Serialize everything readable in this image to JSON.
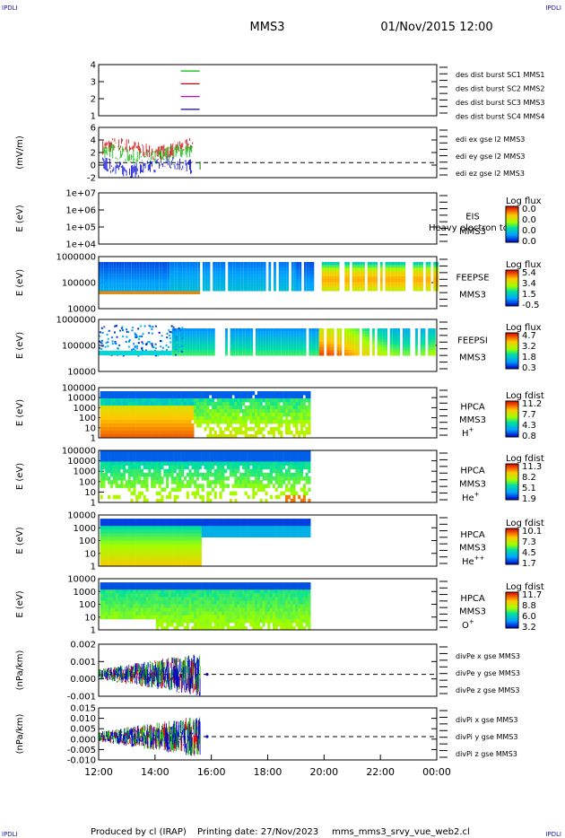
{
  "header": {
    "corner_tl": "IPDLI",
    "corner_tr": "IPDLI",
    "corner_bl": "IPDLI",
    "corner_br": "IPDLI",
    "mission": "MMS3",
    "datetime": "01/Nov/2015 12:00"
  },
  "footer": {
    "produced_by": "Produced by cl (IRAP)",
    "printing_date": "Printing date: 27/Nov/2023",
    "script_name": "mms_mms3_srvy_vue_web2.cl"
  },
  "colors": {
    "blue": "#0000cc",
    "red": "#cc0000",
    "green": "#00bb00",
    "magenta": "#cc00cc"
  },
  "chart_data": [
    {
      "type": "line",
      "id": "burst",
      "ylabel": "",
      "ylim": [
        0.5,
        4.5
      ],
      "yticks": [
        "4",
        "3",
        "2",
        "1"
      ],
      "series": [
        {
          "name": "des dist burst SC1 MMS1",
          "color": "#0000cc",
          "y": 1,
          "x_start": "14:55",
          "x_end": "15:35"
        },
        {
          "name": "des dist burst SC2 MMS2",
          "color": "#cc00cc",
          "y": 2,
          "x_start": "14:55",
          "x_end": "15:35"
        },
        {
          "name": "des dist burst SC3 MMS3",
          "color": "#cc0000",
          "y": 3,
          "x_start": "14:55",
          "x_end": "15:35"
        },
        {
          "name": "des dist burst SC4 MMS4",
          "color": "#00bb00",
          "y": 4,
          "x_start": "14:55",
          "x_end": "15:35"
        }
      ]
    },
    {
      "type": "line",
      "id": "edi",
      "ylabel": "(mV/m)",
      "ylim": [
        -3,
        7
      ],
      "yticks": [
        "6",
        "4",
        "2",
        "0",
        "-2"
      ],
      "series": [
        {
          "name": "edi ex gse l2 MMS3",
          "color": "#cc0000"
        },
        {
          "name": "edi ey gse l2 MMS3",
          "color": "#00bb00"
        },
        {
          "name": "edi ez gse l2 MMS3",
          "color": "#0000cc"
        }
      ]
    },
    {
      "type": "heatmap",
      "id": "eis",
      "ylabel": "E (eV)",
      "yticks": [
        "1e+07",
        "1e+06",
        "1e+05",
        "1e+04"
      ],
      "labels": [
        "EIS",
        "MMS3"
      ],
      "overlay_label": "Heavy electron to",
      "colorbar_title": "Log flux",
      "colorbar_ticks": [
        "0.0",
        "0.0",
        "0.0",
        "0.0"
      ]
    },
    {
      "type": "heatmap",
      "id": "feepse",
      "ylabel": "E (eV)",
      "yticks": [
        "1000000",
        "100000",
        "10000"
      ],
      "labels": [
        "FEEPSE",
        "MMS3"
      ],
      "colorbar_title": "Log flux",
      "colorbar_ticks": [
        "5.4",
        "3.4",
        "1.5",
        "-0.5"
      ]
    },
    {
      "type": "heatmap",
      "id": "feepsi",
      "ylabel": "E (eV)",
      "yticks": [
        "1000000",
        "100000",
        "10000"
      ],
      "labels": [
        "FEEPSI",
        "MMS3"
      ],
      "colorbar_title": "Log flux",
      "colorbar_ticks": [
        "4.7",
        "3.2",
        "1.8",
        "0.3"
      ]
    },
    {
      "type": "heatmap",
      "id": "hpca_h",
      "ylabel": "E (eV)",
      "yticks": [
        "100000",
        "10000",
        "1000",
        "100",
        "10",
        "1"
      ],
      "labels": [
        "HPCA",
        "MMS3"
      ],
      "species": "H",
      "charge": "+",
      "colorbar_title": "Log fdist",
      "colorbar_ticks": [
        "11.2",
        "7.7",
        "4.3",
        "0.8"
      ]
    },
    {
      "type": "heatmap",
      "id": "hpca_he",
      "ylabel": "E (eV)",
      "yticks": [
        "100000",
        "10000",
        "1000",
        "100",
        "10",
        "1"
      ],
      "labels": [
        "HPCA",
        "MMS3"
      ],
      "species": "He",
      "charge": "+",
      "colorbar_title": "Log fdist",
      "colorbar_ticks": [
        "11.3",
        "8.2",
        "5.1",
        "1.9"
      ]
    },
    {
      "type": "heatmap",
      "id": "hpca_hepp",
      "ylabel": "E (eV)",
      "yticks": [
        "10000",
        "1000",
        "100",
        "10",
        "1"
      ],
      "labels": [
        "HPCA",
        "MMS3"
      ],
      "species": "He",
      "charge": "++",
      "colorbar_title": "Log fdist",
      "colorbar_ticks": [
        "10.1",
        "7.3",
        "4.5",
        "1.7"
      ]
    },
    {
      "type": "heatmap",
      "id": "hpca_o",
      "ylabel": "E (eV)",
      "yticks": [
        "10000",
        "1000",
        "100",
        "10",
        "1"
      ],
      "labels": [
        "HPCA",
        "MMS3"
      ],
      "species": "O",
      "charge": "+",
      "colorbar_title": "Log fdist",
      "colorbar_ticks": [
        "11.7",
        "8.8",
        "6.0",
        "3.2"
      ]
    },
    {
      "type": "line",
      "id": "divpe",
      "ylabel": "(nPa/km)",
      "ylim": [
        -0.0016,
        0.0022
      ],
      "yticks": [
        "0.002",
        "0.001",
        "0.000",
        "-0.001"
      ],
      "series": [
        {
          "name": "divPe x gse MMS3",
          "color": "#cc0000"
        },
        {
          "name": "divPe y gse MMS3",
          "color": "#00bb00"
        },
        {
          "name": "divPe z gse MMS3",
          "color": "#0000cc"
        }
      ]
    },
    {
      "type": "line",
      "id": "divpi",
      "ylabel": "(nPa/km)",
      "ylim": [
        -0.013,
        0.016
      ],
      "yticks": [
        "0.015",
        "0.010",
        "0.005",
        "0.000",
        "-0.005",
        "-0.010"
      ],
      "series": [
        {
          "name": "divPi x gse MMS3",
          "color": "#cc0000"
        },
        {
          "name": "divPi y gse MMS3",
          "color": "#00bb00"
        },
        {
          "name": "divPi z gse MMS3",
          "color": "#0000cc"
        }
      ]
    }
  ],
  "x_axis": {
    "ticks": [
      "12:00",
      "14:00",
      "16:00",
      "18:00",
      "20:00",
      "22:00",
      "00:00"
    ]
  }
}
